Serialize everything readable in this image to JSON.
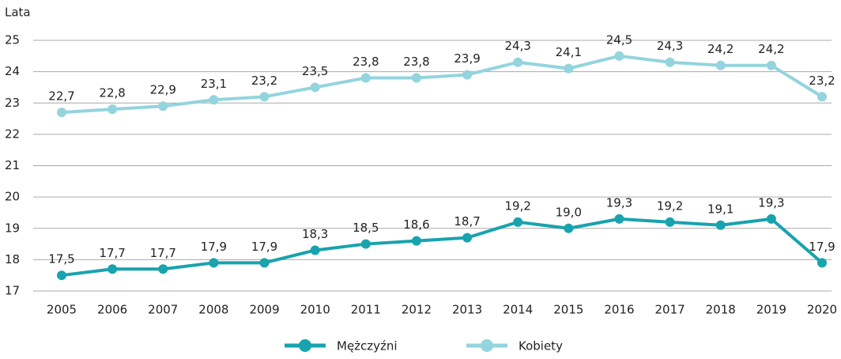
{
  "chart_data": {
    "type": "line",
    "ylabel": "Lata",
    "categories": [
      "2005",
      "2006",
      "2007",
      "2008",
      "2009",
      "2010",
      "2011",
      "2012",
      "2013",
      "2014",
      "2015",
      "2016",
      "2017",
      "2018",
      "2019",
      "2020"
    ],
    "series": [
      {
        "name": "Mężczyźni",
        "color": "#18a3ae",
        "values": [
          17.5,
          17.7,
          17.7,
          17.9,
          17.9,
          18.3,
          18.5,
          18.6,
          18.7,
          19.2,
          19.0,
          19.3,
          19.2,
          19.1,
          19.3,
          17.9
        ],
        "value_labels": [
          "17,5",
          "17,7",
          "17,7",
          "17,9",
          "17,9",
          "18,3",
          "18,5",
          "18,6",
          "18,7",
          "19,2",
          "19,0",
          "19,3",
          "19,2",
          "19,1",
          "19,3",
          "17,9"
        ]
      },
      {
        "name": "Kobiety",
        "color": "#93d4de",
        "values": [
          22.7,
          22.8,
          22.9,
          23.1,
          23.2,
          23.5,
          23.8,
          23.8,
          23.9,
          24.3,
          24.1,
          24.5,
          24.3,
          24.2,
          24.2,
          23.2
        ],
        "value_labels": [
          "22,7",
          "22,8",
          "22,9",
          "23,1",
          "23,2",
          "23,5",
          "23,8",
          "23,8",
          "23,9",
          "24,3",
          "24,1",
          "24,5",
          "24,3",
          "24,2",
          "24,2",
          "23,2"
        ]
      }
    ],
    "ylim": [
      17,
      25
    ],
    "yticks": [
      17,
      18,
      19,
      20,
      21,
      22,
      23,
      24,
      25
    ],
    "grid": true
  }
}
